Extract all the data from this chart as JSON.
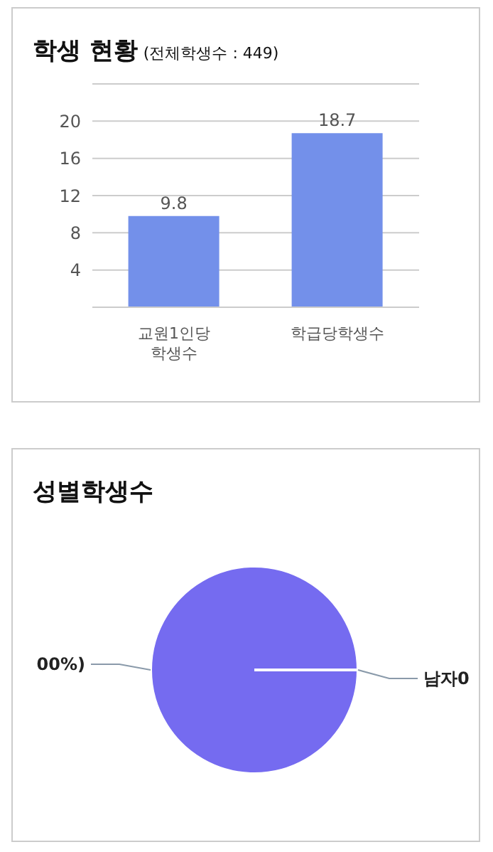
{
  "chart_data": [
    {
      "type": "bar",
      "title": "학생 현황",
      "subtitle": "(전체학생수 : 449)",
      "categories": [
        "교원1인당 학생수",
        "학급당학생수"
      ],
      "values": [
        9.8,
        18.7
      ],
      "color": "#7390ea",
      "ylim": [
        0,
        24
      ],
      "yticks": [
        {
          "value": 0,
          "label": null
        },
        4,
        8,
        12,
        16,
        20,
        {
          "value": 24,
          "label": null
        }
      ],
      "grid": "y",
      "data_labels": true
    },
    {
      "type": "pie",
      "title": "성별학생수",
      "categories": [
        "00%)",
        "남자0"
      ],
      "values": [
        100,
        0
      ],
      "colors": [
        "#756bf0",
        "#756bf0"
      ]
    }
  ]
}
